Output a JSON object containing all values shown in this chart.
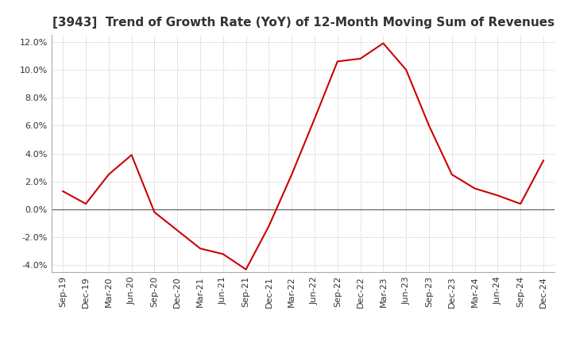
{
  "title": "[3943]  Trend of Growth Rate (YoY) of 12-Month Moving Sum of Revenues",
  "x_labels": [
    "Sep-19",
    "Dec-19",
    "Mar-20",
    "Jun-20",
    "Sep-20",
    "Dec-20",
    "Mar-21",
    "Jun-21",
    "Sep-21",
    "Dec-21",
    "Mar-22",
    "Jun-22",
    "Sep-22",
    "Dec-22",
    "Mar-23",
    "Jun-23",
    "Sep-23",
    "Dec-23",
    "Mar-24",
    "Jun-24",
    "Sep-24",
    "Dec-24"
  ],
  "y_values": [
    1.3,
    0.4,
    2.5,
    3.9,
    -0.2,
    -1.5,
    -2.8,
    -3.2,
    -4.3,
    -1.2,
    2.5,
    6.5,
    10.6,
    10.8,
    11.9,
    10.0,
    6.0,
    2.5,
    1.5,
    1.0,
    0.4,
    3.5
  ],
  "line_color": "#cc0000",
  "ylim": [
    -4.5,
    12.5
  ],
  "yticks": [
    -4.0,
    -2.0,
    0.0,
    2.0,
    4.0,
    6.0,
    8.0,
    10.0,
    12.0
  ],
  "background_color": "#ffffff",
  "grid_color": "#bbbbbb",
  "title_fontsize": 11,
  "tick_fontsize": 8,
  "title_color": "#333333"
}
